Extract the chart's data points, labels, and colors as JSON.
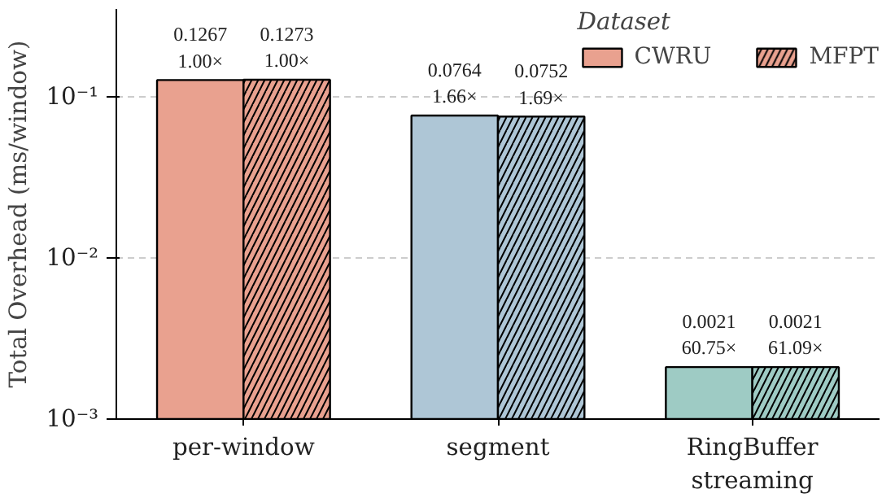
{
  "chart_data": {
    "type": "bar",
    "ylabel": "Total Overhead (ms/window)",
    "legend_title": "Dataset",
    "categories": [
      "per-window",
      "segment",
      "RingBuffer\nstreaming"
    ],
    "series": [
      {
        "name": "CWRU",
        "colors": [
          "#e9a18f",
          "#aec6d6",
          "#9ecbc4"
        ],
        "values": [
          0.1267,
          0.0764,
          0.0021
        ],
        "value_labels": [
          "0.1267\n1.00×",
          "0.0764\n1.66×",
          "0.0021\n60.75×"
        ]
      },
      {
        "name": "MFPT",
        "colors": [
          "#e9a18f",
          "#aec6d6",
          "#9ecbc4"
        ],
        "values": [
          0.1273,
          0.0752,
          0.0021
        ],
        "value_labels": [
          "0.1273\n1.00×",
          "0.0752\n1.69×",
          "0.0021\n61.09×"
        ]
      }
    ],
    "log": "y",
    "ylim": [
      0.001,
      0.35
    ],
    "yticks": [
      {
        "value": 0.001,
        "label": "10⁻³"
      },
      {
        "value": 0.01,
        "label": "10⁻²"
      },
      {
        "value": 0.1,
        "label": "10⁻¹"
      }
    ],
    "grid": "y",
    "legend": "top right"
  }
}
